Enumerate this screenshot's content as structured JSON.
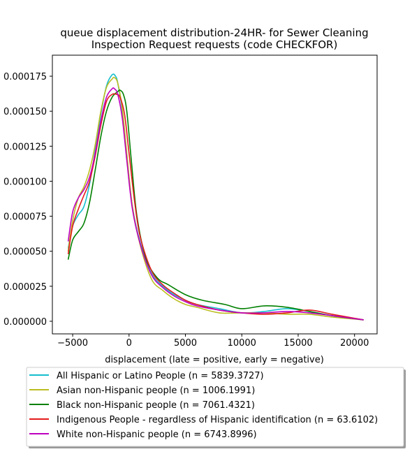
{
  "chart_data": {
    "type": "line",
    "title_line1": "queue displacement distribution-24HR-  for Sewer Cleaning",
    "title_line2": "Inspection Request  requests (code CHECKFOR)",
    "xlabel": "displacement (late = positive, early = negative)",
    "ylabel": "",
    "xlim": [
      -6800,
      22000
    ],
    "ylim": [
      -9e-06,
      0.00019
    ],
    "x_ticks": [
      -5000,
      0,
      5000,
      10000,
      15000,
      20000
    ],
    "x_tick_labels": [
      "−5000",
      "0",
      "5000",
      "10000",
      "15000",
      "20000"
    ],
    "y_ticks": [
      0,
      2.5e-05,
      5e-05,
      7.5e-05,
      0.0001,
      0.000125,
      0.00015,
      0.000175
    ],
    "y_tick_labels": [
      "0.000000",
      "0.000025",
      "0.000050",
      "0.000075",
      "0.000100",
      "0.000125",
      "0.000150",
      "0.000175"
    ],
    "grid": false,
    "legend_position": "below plot",
    "series": [
      {
        "name": "All Hispanic or Latino People (n = 5839.3727)",
        "color": "#17becf",
        "x": [
          -5400,
          -5000,
          -4500,
          -4000,
          -3500,
          -3000,
          -2500,
          -2000,
          -1500,
          -1200,
          -1000,
          -600,
          -200,
          300,
          1000,
          2000,
          3000,
          4000,
          5000,
          6000,
          8000,
          10000,
          12000,
          14000,
          16000,
          18000,
          20800
        ],
        "y": [
          5.2e-05,
          6.8e-05,
          7.6e-05,
          8.2e-05,
          9.8e-05,
          0.000122,
          0.000148,
          0.000168,
          0.000176,
          0.000175,
          0.00017,
          0.00015,
          0.000118,
          8.2e-05,
          5.6e-05,
          3.4e-05,
          2.5e-05,
          1.9e-05,
          1.5e-05,
          1.2e-05,
          9e-06,
          6e-06,
          7e-06,
          9e-06,
          7e-06,
          4e-06,
          1e-06
        ]
      },
      {
        "name": "Asian non-Hispanic people (n = 1006.1991)",
        "color": "#bcbd22",
        "x": [
          -5400,
          -5000,
          -4500,
          -4000,
          -3500,
          -3000,
          -2500,
          -2000,
          -1500,
          -1300,
          -1000,
          -600,
          -200,
          300,
          1000,
          2000,
          3000,
          4000,
          5000,
          6000,
          8000,
          10000,
          12000,
          14000,
          16000,
          18000,
          20800
        ],
        "y": [
          5e-05,
          7.2e-05,
          8.8e-05,
          9.6e-05,
          0.000108,
          0.000126,
          0.00015,
          0.000167,
          0.000173,
          0.000174,
          0.00017,
          0.000152,
          0.00012,
          8.2e-05,
          5.4e-05,
          3e-05,
          2.2e-05,
          1.6e-05,
          1.2e-05,
          1e-05,
          6e-06,
          6e-06,
          6e-06,
          5e-06,
          5e-06,
          3e-06,
          1e-06
        ]
      },
      {
        "name": "Black non-Hispanic people (n = 7061.4321)",
        "color": "#008000",
        "x": [
          -5400,
          -5000,
          -4500,
          -4000,
          -3500,
          -3000,
          -2500,
          -2000,
          -1500,
          -1000,
          -800,
          -500,
          -200,
          200,
          700,
          1500,
          2500,
          3500,
          5000,
          6500,
          8500,
          10000,
          12000,
          14000,
          16000,
          18000,
          20800
        ],
        "y": [
          4.4e-05,
          5.8e-05,
          6.4e-05,
          7e-05,
          8.5e-05,
          0.000108,
          0.000132,
          0.00015,
          0.00016,
          0.000164,
          0.000165,
          0.000162,
          0.00015,
          0.000115,
          7.5e-05,
          4.5e-05,
          3.1e-05,
          2.6e-05,
          1.9e-05,
          1.5e-05,
          1.2e-05,
          9e-06,
          1.1e-05,
          1e-05,
          7e-06,
          4e-06,
          1e-06
        ]
      },
      {
        "name": "Indigenous People - regardless of Hispanic identification (n = 63.6102)",
        "color": "#e41a1c",
        "x": [
          -5400,
          -5000,
          -4500,
          -4000,
          -3500,
          -3000,
          -2500,
          -2000,
          -1500,
          -1100,
          -800,
          -400,
          0,
          500,
          1000,
          2000,
          3000,
          4000,
          5000,
          6000,
          8000,
          10000,
          12000,
          14000,
          16000,
          18000,
          20800
        ],
        "y": [
          4.8e-05,
          6.8e-05,
          8e-05,
          9e-05,
          0.0001,
          0.000118,
          0.00014,
          0.000157,
          0.000162,
          0.000162,
          0.00016,
          0.000148,
          0.00012,
          8.5e-05,
          6e-05,
          3.6e-05,
          2.6e-05,
          2e-05,
          1.5e-05,
          1.2e-05,
          8e-06,
          6e-06,
          5e-06,
          6e-06,
          8e-06,
          5e-06,
          1e-06
        ]
      },
      {
        "name": "White non-Hispanic people (n = 6743.8996)",
        "color": "#bf00bf",
        "x": [
          -5400,
          -5000,
          -4500,
          -4000,
          -3500,
          -3000,
          -2500,
          -2000,
          -1500,
          -1300,
          -1000,
          -600,
          -200,
          300,
          1000,
          2000,
          3000,
          4000,
          5000,
          6000,
          8000,
          10000,
          12000,
          14000,
          16000,
          18000,
          20800
        ],
        "y": [
          5.7e-05,
          7.8e-05,
          8.8e-05,
          9.4e-05,
          0.000103,
          0.00012,
          0.000143,
          0.00016,
          0.000166,
          0.000166,
          0.000162,
          0.000145,
          0.000115,
          8e-05,
          5.5e-05,
          3.3e-05,
          2.4e-05,
          1.8e-05,
          1.4e-05,
          1.1e-05,
          8e-06,
          6e-06,
          6e-06,
          7e-06,
          6e-06,
          4e-06,
          1e-06
        ]
      }
    ]
  }
}
